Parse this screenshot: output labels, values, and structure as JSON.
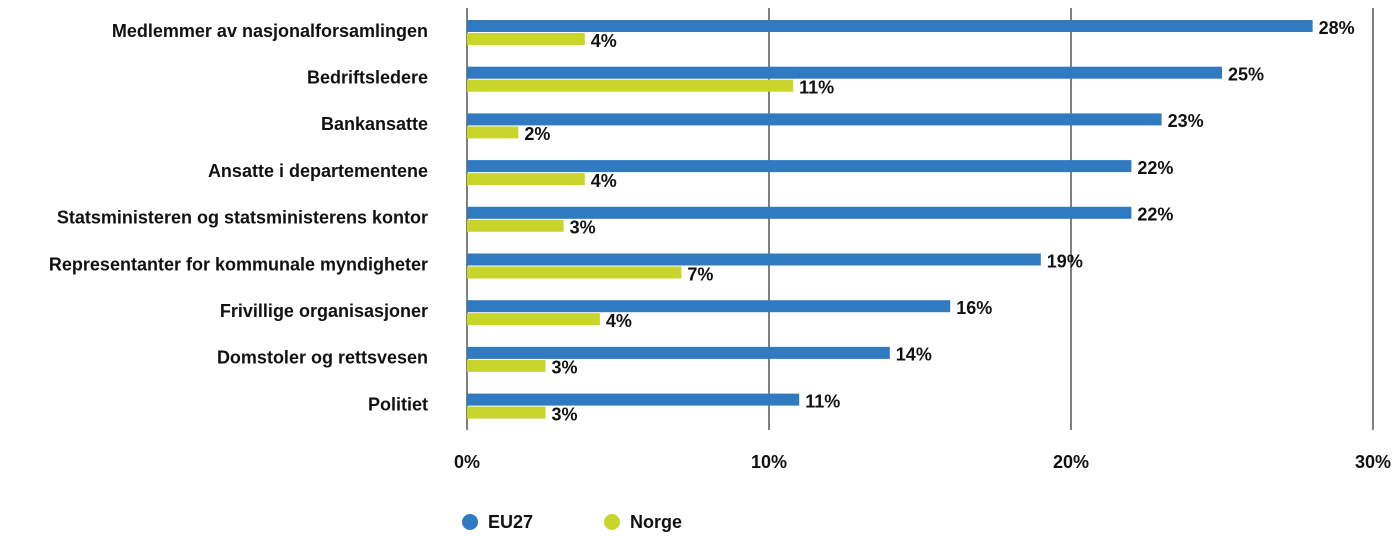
{
  "chart_data": {
    "type": "bar",
    "orientation": "horizontal",
    "categories": [
      "Medlemmer av nasjonalforsamlingen",
      "Bedriftsledere",
      "Bankansatte",
      "Ansatte i departementene",
      "Statsministeren og statsministerens kontor",
      "Representanter for kommunale myndigheter",
      "Frivillige organisasjoner",
      "Domstoler og rettsvesen",
      "Politiet"
    ],
    "series": [
      {
        "name": "EU27",
        "color": "#2f7ac0",
        "values": [
          28,
          25,
          23,
          22,
          22,
          19,
          16,
          14,
          11
        ],
        "value_labels": [
          "28%",
          "25%",
          "23%",
          "22%",
          "22%",
          "19%",
          "16%",
          "14%",
          "11%"
        ]
      },
      {
        "name": "Norge",
        "color": "#c8d62b",
        "values": [
          3.9,
          10.8,
          1.7,
          3.9,
          3.2,
          7.1,
          4.4,
          2.6,
          2.6
        ],
        "value_labels": [
          "4%",
          "11%",
          "2%",
          "4%",
          "3%",
          "7%",
          "4%",
          "3%",
          "3%"
        ]
      }
    ],
    "xlim": [
      0,
      30
    ],
    "xticks": [
      {
        "value": 0,
        "label": "0%"
      },
      {
        "value": 10,
        "label": "10%"
      },
      {
        "value": 20,
        "label": "20%"
      },
      {
        "value": 30,
        "label": "30%"
      }
    ],
    "grid": true,
    "legend": "bottom"
  }
}
